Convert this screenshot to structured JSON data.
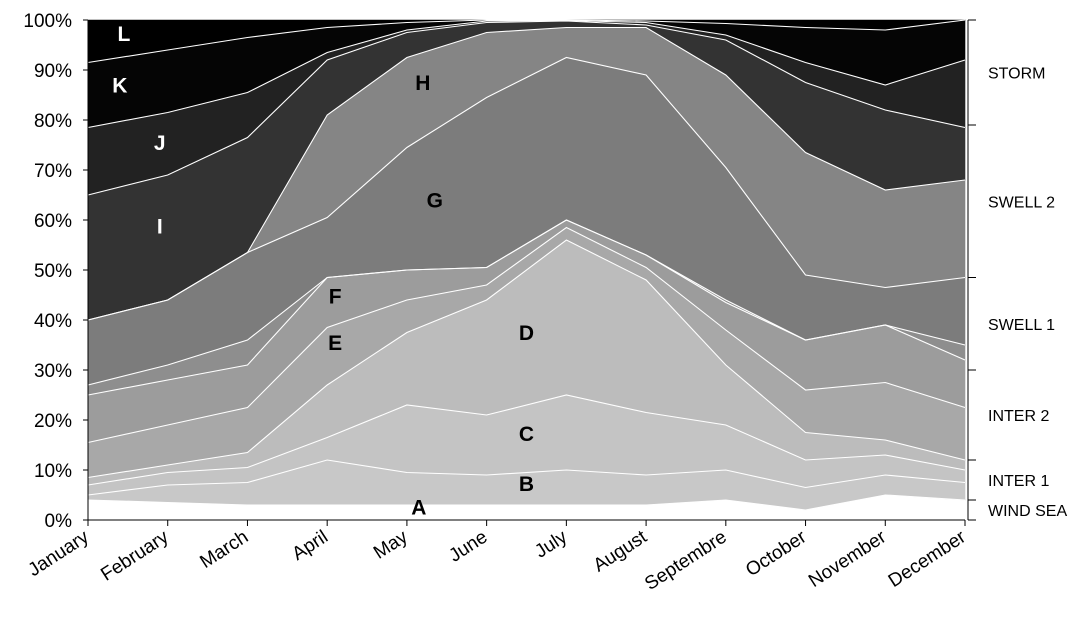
{
  "chart_data": {
    "type": "area",
    "stacked": true,
    "percent": true,
    "categories": [
      "January",
      "February",
      "March",
      "April",
      "May",
      "June",
      "July",
      "August",
      "Septembre",
      "October",
      "November",
      "December"
    ],
    "y_ticks": [
      "0%",
      "10%",
      "20%",
      "30%",
      "40%",
      "50%",
      "60%",
      "70%",
      "80%",
      "90%",
      "100%"
    ],
    "ylim": [
      0,
      100
    ],
    "cumulative_series": [
      {
        "label": "A",
        "fill": "#ffffff",
        "top": [
          4,
          3.5,
          3,
          3,
          3,
          3,
          3,
          3,
          4,
          2,
          5,
          4
        ]
      },
      {
        "label": "B",
        "fill": "#c8c8c8",
        "top": [
          5,
          7,
          7.5,
          12,
          9.5,
          9,
          10,
          9,
          10,
          6.5,
          9,
          7.5
        ]
      },
      {
        "label": "C",
        "fill": "#c4c4c4",
        "top": [
          7,
          9.5,
          10.5,
          16.5,
          23,
          21,
          25,
          21.5,
          19,
          12,
          13,
          10
        ]
      },
      {
        "label": "D",
        "fill": "#bcbcbc",
        "top": [
          8.5,
          11,
          13.5,
          27,
          37.5,
          44,
          56,
          48,
          31,
          17.5,
          16,
          12
        ]
      },
      {
        "label": "E",
        "fill": "#a8a8a8",
        "top": [
          15.5,
          19,
          22.5,
          38.5,
          44,
          47,
          58.5,
          50.5,
          38,
          26,
          27.5,
          22.5
        ]
      },
      {
        "label": "F",
        "fill": "#9c9c9c",
        "top": [
          25,
          28,
          31,
          48.5,
          50,
          50.5,
          60,
          53,
          43.5,
          36,
          39,
          32
        ]
      },
      {
        "label": "",
        "fill": "#8e8e8e",
        "top": [
          27,
          31,
          36,
          48.5,
          50,
          50.5,
          60,
          53,
          44,
          36,
          39,
          35
        ]
      },
      {
        "label": "G",
        "fill": "#7c7c7c",
        "top": [
          40,
          44,
          53.5,
          60.5,
          74.5,
          84.5,
          92.5,
          89,
          70.5,
          49,
          46.5,
          48.5
        ]
      },
      {
        "label": "H",
        "fill": "#858585",
        "top": [
          40,
          44,
          53.5,
          81,
          92.5,
          97.5,
          98.5,
          98.5,
          89,
          73.5,
          66,
          68
        ]
      },
      {
        "label": "I",
        "fill": "#333333",
        "top": [
          65,
          69,
          76.5,
          92,
          97.5,
          99.5,
          99.8,
          99,
          96,
          87.5,
          82,
          78.5
        ]
      },
      {
        "label": "J",
        "fill": "#222222",
        "top": [
          78.5,
          81.5,
          85.5,
          93.5,
          98,
          99.8,
          99.9,
          99.5,
          97,
          91.5,
          87,
          92
        ]
      },
      {
        "label": "K",
        "fill": "#050505",
        "top": [
          91.5,
          94,
          96.5,
          98.5,
          99.5,
          100,
          100,
          99.8,
          99.3,
          98.5,
          98,
          100
        ]
      },
      {
        "label": "L",
        "fill": "#000000",
        "top": [
          100,
          100,
          100,
          100,
          100,
          100,
          100,
          100,
          100,
          100,
          100,
          100
        ]
      }
    ],
    "series_labels": [
      {
        "text": "L",
        "month": 0.45,
        "y": 95.8,
        "color": "#ffffff"
      },
      {
        "text": "K",
        "month": 0.4,
        "y": 85.5,
        "color": "#ffffff"
      },
      {
        "text": "J",
        "month": 0.9,
        "y": 74,
        "color": "#ffffff"
      },
      {
        "text": "I",
        "month": 0.9,
        "y": 57.3,
        "color": "#ffffff"
      },
      {
        "text": "H",
        "month": 4.2,
        "y": 86,
        "color": "#000000"
      },
      {
        "text": "G",
        "month": 4.35,
        "y": 62.5,
        "color": "#000000"
      },
      {
        "text": "F",
        "month": 3.1,
        "y": 43.3,
        "color": "#000000"
      },
      {
        "text": "E",
        "month": 3.1,
        "y": 34,
        "color": "#000000"
      },
      {
        "text": "D",
        "month": 5.5,
        "y": 36,
        "color": "#000000"
      },
      {
        "text": "C",
        "month": 5.5,
        "y": 15.8,
        "color": "#000000"
      },
      {
        "text": "B",
        "month": 5.5,
        "y": 5.8,
        "color": "#000000"
      },
      {
        "text": "A",
        "month": 4.15,
        "y": 1.1,
        "color": "#000000"
      }
    ],
    "groups": [
      {
        "name": "WIND SEA",
        "from": 0,
        "to": 4
      },
      {
        "name": "INTER 1",
        "from": 4,
        "to": 12
      },
      {
        "name": "INTER 2",
        "from": 12,
        "to": 30
      },
      {
        "name": "SWELL 1",
        "from": 30,
        "to": 48.5
      },
      {
        "name": "SWELL 2",
        "from": 48.5,
        "to": 79
      },
      {
        "name": "STORM",
        "from": 79,
        "to": 100
      }
    ]
  }
}
